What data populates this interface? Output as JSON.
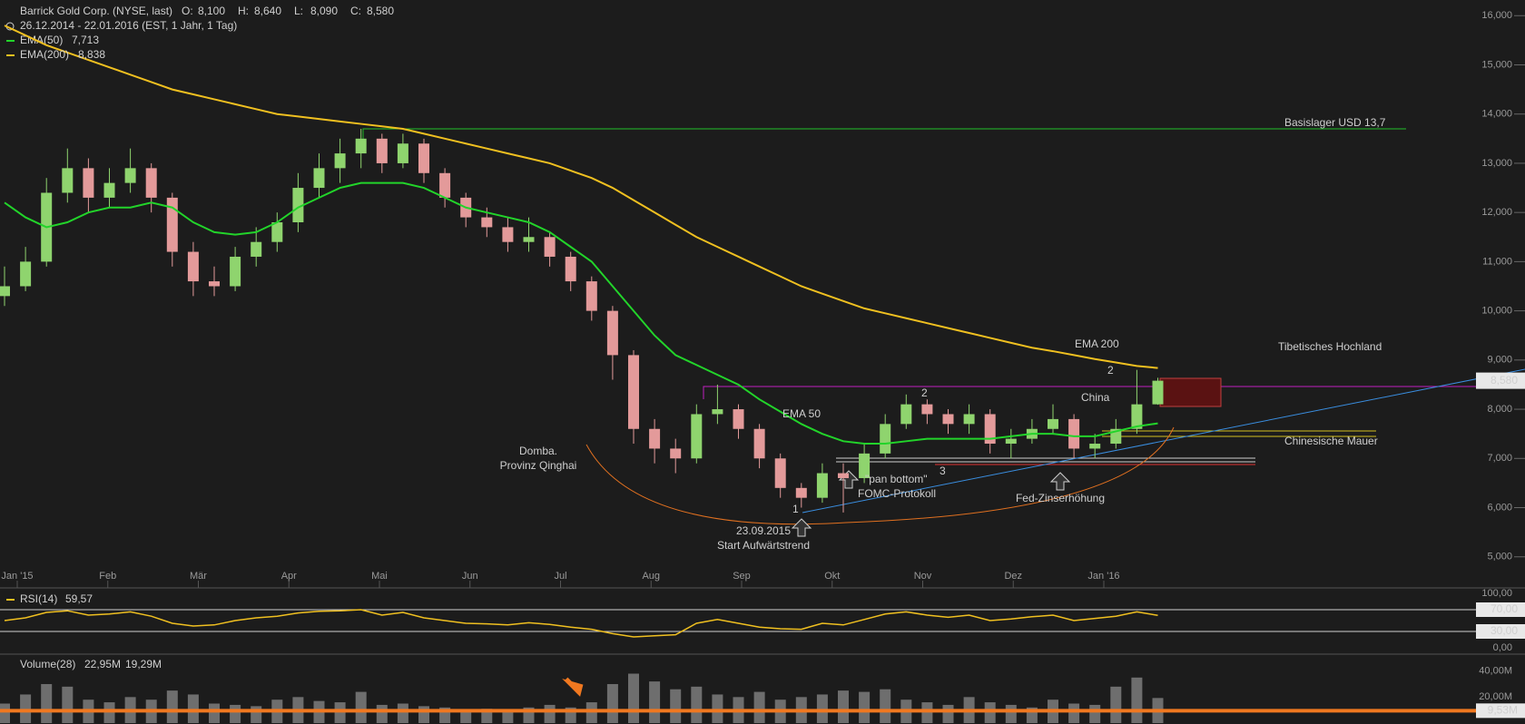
{
  "chart_data": [
    {
      "type": "candlestick",
      "title": "Barrick Gold Corp. (NYSE, last)",
      "ohlc_readout": [
        {
          "label": "O:",
          "value": "8,100"
        },
        {
          "label": "H:",
          "value": "8,640"
        },
        {
          "label": "L:",
          "value": "8,090"
        },
        {
          "label": "C:",
          "value": "8,580"
        }
      ],
      "subtitle": "26.12.2014 - 22.01.2016 (EST, 1 Jahr, 1 Tag)",
      "x_labels": [
        "Jan '15",
        "Feb",
        "Mär",
        "Apr",
        "Mai",
        "Jun",
        "Jul",
        "Aug",
        "Sep",
        "Okt",
        "Nov",
        "Dez",
        "Jan '16"
      ],
      "up_color": "#8fd46e",
      "down_color": "#e39a9a",
      "ohlc": [
        [
          10.3,
          10.9,
          10.1,
          10.5
        ],
        [
          10.5,
          11.3,
          10.4,
          11.0
        ],
        [
          11.0,
          12.7,
          10.9,
          12.4
        ],
        [
          12.4,
          13.3,
          12.2,
          12.9
        ],
        [
          12.9,
          13.1,
          12.0,
          12.3
        ],
        [
          12.3,
          12.9,
          12.1,
          12.6
        ],
        [
          12.6,
          13.3,
          12.4,
          12.9
        ],
        [
          12.9,
          13.0,
          12.0,
          12.3
        ],
        [
          12.3,
          12.4,
          10.9,
          11.2
        ],
        [
          11.2,
          11.4,
          10.3,
          10.6
        ],
        [
          10.6,
          10.9,
          10.3,
          10.5
        ],
        [
          10.5,
          11.3,
          10.4,
          11.1
        ],
        [
          11.1,
          11.7,
          10.9,
          11.4
        ],
        [
          11.4,
          12.0,
          11.2,
          11.8
        ],
        [
          11.8,
          12.8,
          11.6,
          12.5
        ],
        [
          12.5,
          13.2,
          12.3,
          12.9
        ],
        [
          12.9,
          13.5,
          12.6,
          13.2
        ],
        [
          13.2,
          13.7,
          12.9,
          13.5
        ],
        [
          13.5,
          13.6,
          12.8,
          13.0
        ],
        [
          13.0,
          13.6,
          12.9,
          13.4
        ],
        [
          13.4,
          13.5,
          12.6,
          12.8
        ],
        [
          12.8,
          12.9,
          12.1,
          12.3
        ],
        [
          12.3,
          12.4,
          11.7,
          11.9
        ],
        [
          11.9,
          12.1,
          11.5,
          11.7
        ],
        [
          11.7,
          11.9,
          11.2,
          11.4
        ],
        [
          11.4,
          11.9,
          11.2,
          11.5
        ],
        [
          11.5,
          11.6,
          10.9,
          11.1
        ],
        [
          11.1,
          11.2,
          10.4,
          10.6
        ],
        [
          10.6,
          10.7,
          9.8,
          10.0
        ],
        [
          10.0,
          10.1,
          8.6,
          9.1
        ],
        [
          9.1,
          9.2,
          7.3,
          7.6
        ],
        [
          7.6,
          7.8,
          6.9,
          7.2
        ],
        [
          7.2,
          7.4,
          6.7,
          7.0
        ],
        [
          7.0,
          8.1,
          6.9,
          7.9
        ],
        [
          7.9,
          8.5,
          7.7,
          8.0
        ],
        [
          8.0,
          8.1,
          7.4,
          7.6
        ],
        [
          7.6,
          7.7,
          6.8,
          7.0
        ],
        [
          7.0,
          7.1,
          6.2,
          6.4
        ],
        [
          6.4,
          6.5,
          6.0,
          6.2
        ],
        [
          6.2,
          6.9,
          6.1,
          6.7
        ],
        [
          6.7,
          6.9,
          5.9,
          6.6
        ],
        [
          6.6,
          7.3,
          6.5,
          7.1
        ],
        [
          7.1,
          7.9,
          7.0,
          7.7
        ],
        [
          7.7,
          8.3,
          7.6,
          8.1
        ],
        [
          8.1,
          8.2,
          7.7,
          7.9
        ],
        [
          7.9,
          8.0,
          7.5,
          7.7
        ],
        [
          7.7,
          8.1,
          7.5,
          7.9
        ],
        [
          7.9,
          8.0,
          7.1,
          7.3
        ],
        [
          7.3,
          7.6,
          7.0,
          7.4
        ],
        [
          7.4,
          7.8,
          7.3,
          7.6
        ],
        [
          7.6,
          8.1,
          7.5,
          7.8
        ],
        [
          7.8,
          7.9,
          7.0,
          7.2
        ],
        [
          7.2,
          7.5,
          7.0,
          7.3
        ],
        [
          7.3,
          7.8,
          7.2,
          7.6
        ],
        [
          7.6,
          8.8,
          7.5,
          8.1
        ],
        [
          8.1,
          8.64,
          8.09,
          8.58
        ]
      ],
      "series": [
        {
          "name": "EMA(50)",
          "color": "#22d42a",
          "last_label": "7,713",
          "values": [
            12.2,
            11.9,
            11.7,
            11.8,
            12.0,
            12.1,
            12.1,
            12.2,
            12.1,
            11.8,
            11.6,
            11.55,
            11.6,
            11.8,
            12.1,
            12.3,
            12.5,
            12.6,
            12.6,
            12.6,
            12.5,
            12.3,
            12.1,
            12.0,
            11.9,
            11.8,
            11.6,
            11.3,
            11.0,
            10.5,
            10.0,
            9.5,
            9.1,
            8.9,
            8.7,
            8.5,
            8.2,
            7.95,
            7.7,
            7.5,
            7.35,
            7.3,
            7.3,
            7.35,
            7.4,
            7.4,
            7.4,
            7.4,
            7.45,
            7.5,
            7.5,
            7.45,
            7.45,
            7.55,
            7.65,
            7.713
          ]
        },
        {
          "name": "EMA(200)",
          "color": "#f0c020",
          "last_label": "8,838",
          "values": [
            15.8,
            15.6,
            15.4,
            15.25,
            15.1,
            14.95,
            14.8,
            14.65,
            14.5,
            14.4,
            14.3,
            14.2,
            14.1,
            14.0,
            13.95,
            13.9,
            13.85,
            13.8,
            13.75,
            13.7,
            13.6,
            13.5,
            13.4,
            13.3,
            13.2,
            13.1,
            13.0,
            12.85,
            12.7,
            12.5,
            12.25,
            12.0,
            11.75,
            11.5,
            11.3,
            11.1,
            10.9,
            10.7,
            10.5,
            10.35,
            10.2,
            10.05,
            9.95,
            9.85,
            9.75,
            9.65,
            9.55,
            9.45,
            9.35,
            9.25,
            9.18,
            9.1,
            9.02,
            8.95,
            8.88,
            8.838
          ]
        }
      ],
      "ylim": [
        4.7,
        16.3
      ],
      "yticks": [
        {
          "value": 5,
          "label": "5,000"
        },
        {
          "value": 6,
          "label": "6,000"
        },
        {
          "value": 7,
          "label": "7,000"
        },
        {
          "value": 8,
          "label": "8,000"
        },
        {
          "value": 9,
          "label": "9,000"
        },
        {
          "value": 10,
          "label": "10,000"
        },
        {
          "value": 11,
          "label": "11,000"
        },
        {
          "value": 12,
          "label": "12,000"
        },
        {
          "value": 13,
          "label": "13,000"
        },
        {
          "value": 14,
          "label": "14,000"
        },
        {
          "value": 15,
          "label": "15,000"
        },
        {
          "value": 16,
          "label": "16,000"
        }
      ],
      "last_price": {
        "value": 8.58,
        "label": "8,580"
      },
      "annotations": [
        "Basislager USD 13,7",
        "EMA 200",
        "Tibetisches Hochland",
        "China",
        "EMA 50",
        "Chinesische Mauer",
        "Domba.",
        "Provinz Qinghai",
        "\"pan bottom\"",
        "FOMC-Protokoll",
        "Fed-Zinserhöhung",
        "23.09.2015",
        "Start Aufwärtstrend",
        "2",
        "2",
        "3",
        "1"
      ]
    },
    {
      "type": "line",
      "name": "RSI(14)",
      "last_label": "59,57",
      "color": "#f0c020",
      "values": [
        50,
        55,
        65,
        68,
        60,
        62,
        66,
        58,
        45,
        40,
        42,
        50,
        55,
        58,
        64,
        67,
        68,
        70,
        60,
        65,
        55,
        50,
        45,
        44,
        42,
        46,
        43,
        38,
        34,
        26,
        20,
        22,
        24,
        45,
        52,
        45,
        38,
        35,
        34,
        45,
        42,
        52,
        62,
        66,
        60,
        56,
        60,
        50,
        53,
        57,
        60,
        50,
        54,
        58,
        66,
        59.57
      ],
      "ylim": [
        0,
        100
      ],
      "yticks": [
        {
          "value": 100,
          "label": "100,00"
        },
        {
          "value": 0,
          "label": "0,00"
        }
      ],
      "levels": [
        {
          "value": 70,
          "label": "70,00"
        },
        {
          "value": 30,
          "label": "30,00"
        }
      ]
    },
    {
      "type": "bar",
      "name": "Volume(28)",
      "avg_label": "22,95M",
      "last_label": "19,29M",
      "color": "#6e6e6e",
      "values": [
        15,
        22,
        30,
        28,
        18,
        16,
        20,
        18,
        25,
        22,
        15,
        14,
        13,
        18,
        20,
        17,
        16,
        24,
        14,
        15,
        13,
        12,
        10,
        11,
        10,
        12,
        14,
        12,
        16,
        30,
        38,
        32,
        26,
        28,
        22,
        20,
        24,
        18,
        20,
        22,
        25,
        24,
        26,
        18,
        16,
        14,
        20,
        16,
        14,
        12,
        18,
        15,
        14,
        28,
        35,
        19.29
      ],
      "ylim": [
        0,
        53
      ],
      "yticks": [
        {
          "value": 40,
          "label": "40,00M"
        },
        {
          "value": 20,
          "label": "20,00M"
        }
      ],
      "level": {
        "value": 9.53,
        "label": "9,53M",
        "color": "#f07820"
      }
    }
  ]
}
